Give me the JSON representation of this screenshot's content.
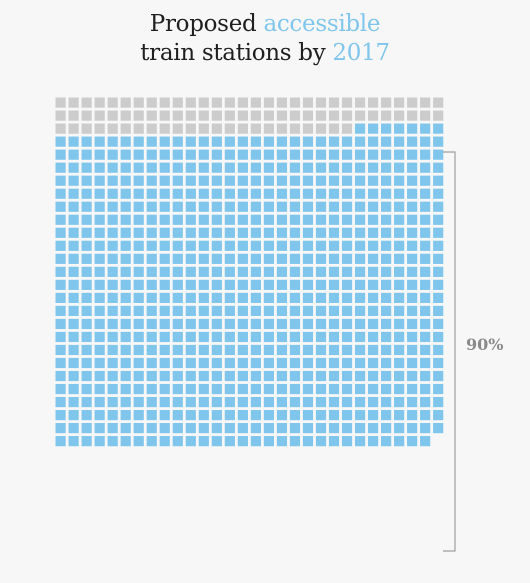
{
  "title": {
    "line1_plain": "Proposed ",
    "line1_highlight": "accessible",
    "line2_plain": "train stations by ",
    "line2_highlight": "2017"
  },
  "colors": {
    "highlight": "#80c6ec",
    "inaccessible": "#cccccc",
    "accessible": "#80c6ec",
    "bracket": "#a0a0a0",
    "label": "#8a8a8a"
  },
  "chart_data": {
    "type": "waffle",
    "columns": 30,
    "total": 809,
    "categories": [
      {
        "name": "",
        "count": 83,
        "color": "#cccccc"
      },
      {
        "name": "",
        "count": 726,
        "color": "#80c6ec"
      }
    ],
    "annotation": {
      "label": "90%"
    }
  }
}
